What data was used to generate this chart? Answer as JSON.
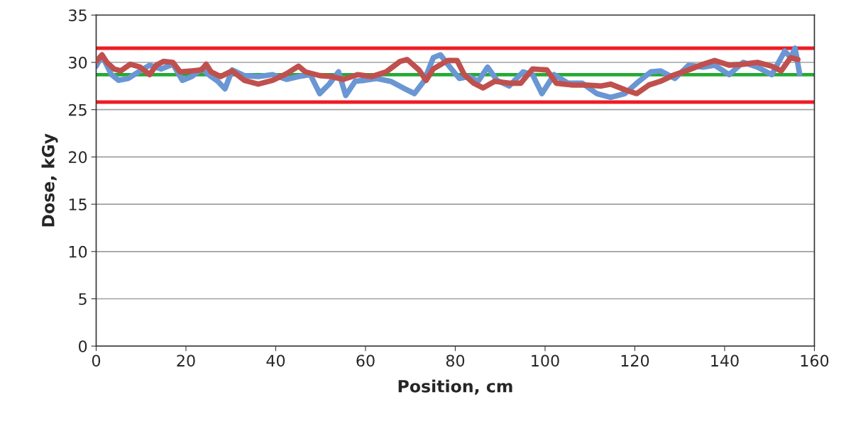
{
  "chart_data": {
    "type": "line",
    "xlabel": "Position, cm",
    "ylabel": "Dose, kGy",
    "xlim": [
      0,
      160
    ],
    "xticks": [
      0,
      20,
      40,
      60,
      80,
      100,
      120,
      140,
      160
    ],
    "ylim": [
      0,
      35
    ],
    "yticks": [
      0,
      5,
      10,
      15,
      20,
      25,
      30,
      35
    ],
    "grid": "y",
    "legend": false,
    "marker": "none",
    "line_style": "solid",
    "series": [
      {
        "color": "#6a96d4",
        "x": [
          0,
          1.3,
          3.4,
          5,
          7.1,
          9.8,
          11.9,
          14.5,
          17.1,
          19.2,
          21.3,
          23.5,
          25.6,
          27.1,
          28.7,
          30.3,
          33,
          36.1,
          39.3,
          42.4,
          45.1,
          47.7,
          49.8,
          51.9,
          54,
          55.6,
          57.7,
          59.8,
          62.5,
          65.6,
          68.8,
          70.9,
          73,
          75.1,
          76.7,
          78.8,
          80.9,
          83,
          85.1,
          87.2,
          89.3,
          92,
          95.1,
          97.2,
          99.3,
          102,
          105.1,
          108.3,
          111.5,
          114.6,
          117.8,
          120.9,
          123.6,
          125.7,
          128.9,
          132,
          135.2,
          137.8,
          141,
          144.1,
          147.3,
          150.5,
          153.4,
          154.7,
          155.7,
          156.7
        ],
        "values": [
          29.6,
          30.7,
          28.7,
          28.1,
          28.3,
          29.1,
          29.7,
          29.3,
          29.8,
          28.1,
          28.5,
          29.3,
          28.5,
          28.0,
          27.2,
          29.2,
          28.6,
          28.5,
          28.7,
          28.2,
          28.5,
          28.7,
          26.7,
          27.7,
          29.0,
          26.5,
          28.0,
          28.1,
          28.3,
          28.0,
          27.2,
          26.7,
          28.0,
          30.5,
          30.8,
          29.5,
          28.3,
          28.5,
          28.0,
          29.5,
          28.1,
          27.5,
          29.0,
          28.7,
          26.7,
          28.7,
          27.8,
          27.8,
          26.7,
          26.3,
          26.7,
          28.0,
          29.0,
          29.1,
          28.3,
          29.7,
          29.5,
          29.7,
          28.7,
          30.0,
          29.5,
          28.7,
          31.2,
          30.5,
          31.5,
          28.8
        ]
      },
      {
        "color": "#c0504d",
        "x": [
          0,
          1.3,
          2.4,
          4,
          5.5,
          7.6,
          9.8,
          11.9,
          13.4,
          15,
          17.1,
          18.7,
          21.3,
          23.5,
          24.5,
          25.6,
          27.7,
          30.3,
          33,
          36.1,
          39.3,
          42.4,
          45.1,
          46.6,
          49.8,
          52.4,
          55.1,
          58.2,
          61.4,
          64.6,
          67.7,
          69.3,
          71.9,
          73.5,
          75.1,
          78.3,
          80.4,
          82,
          84.1,
          86.2,
          88.8,
          92,
          94.6,
          97.2,
          100.4,
          102.5,
          106.2,
          109.4,
          112.5,
          114.6,
          117.8,
          120.4,
          123.1,
          125.7,
          128.9,
          132,
          135.2,
          137.8,
          141,
          144.1,
          147.3,
          150.5,
          152.6,
          154.7,
          156.3
        ],
        "values": [
          30.1,
          30.8,
          30.0,
          29.3,
          29.1,
          29.8,
          29.5,
          28.7,
          29.7,
          30.1,
          30.0,
          29.0,
          29.1,
          29.2,
          29.8,
          29.0,
          28.5,
          29.1,
          28.1,
          27.7,
          28.1,
          28.8,
          29.6,
          29.0,
          28.6,
          28.5,
          28.2,
          28.7,
          28.5,
          29.0,
          30.1,
          30.3,
          29.2,
          28.1,
          29.3,
          30.2,
          30.2,
          28.7,
          27.8,
          27.3,
          28.0,
          27.8,
          27.8,
          29.3,
          29.2,
          27.8,
          27.6,
          27.6,
          27.5,
          27.7,
          27.1,
          26.7,
          27.6,
          28.0,
          28.7,
          29.2,
          29.8,
          30.2,
          29.7,
          29.8,
          30.0,
          29.6,
          29.1,
          30.5,
          30.3
        ]
      }
    ],
    "ref_lines": [
      {
        "axis": "y",
        "value": 31.5,
        "color": "#ee1c25"
      },
      {
        "axis": "y",
        "value": 28.7,
        "color": "#22aa33"
      },
      {
        "axis": "y",
        "value": 25.8,
        "color": "#ee1c25"
      }
    ]
  }
}
